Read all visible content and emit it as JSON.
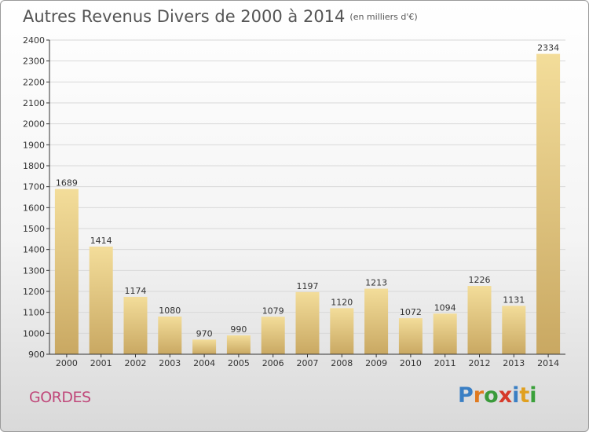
{
  "title": "Autres Revenus Divers de 2000 à 2014",
  "subtitle": "(en milliers d'€)",
  "town": "GORDES",
  "logo": {
    "text": "Proxiti",
    "letters": [
      {
        "ch": "P",
        "color": "#3a7fc4"
      },
      {
        "ch": "r",
        "color": "#e07a1f"
      },
      {
        "ch": "o",
        "color": "#3a9a3a"
      },
      {
        "ch": "x",
        "color": "#d63a2a"
      },
      {
        "ch": "i",
        "color": "#3a7fc4"
      },
      {
        "ch": "t",
        "color": "#e0a020"
      },
      {
        "ch": "i",
        "color": "#3aa03a"
      }
    ]
  },
  "colors": {
    "bar_light": "#f3dd9a",
    "bar_dark": "#c9a862",
    "axis": "#333333",
    "grid": "#d8d8d8"
  },
  "chart_data": {
    "type": "bar",
    "categories": [
      "2000",
      "2001",
      "2002",
      "2003",
      "2004",
      "2005",
      "2006",
      "2007",
      "2008",
      "2009",
      "2010",
      "2011",
      "2012",
      "2013",
      "2014"
    ],
    "values": [
      1689,
      1414,
      1174,
      1080,
      970,
      990,
      1079,
      1197,
      1120,
      1213,
      1072,
      1094,
      1226,
      1131,
      2334
    ],
    "ylim": [
      900,
      2400
    ],
    "yticks": [
      900,
      1000,
      1100,
      1200,
      1300,
      1400,
      1500,
      1600,
      1700,
      1800,
      1900,
      2000,
      2100,
      2200,
      2300,
      2400
    ],
    "grid": true,
    "data_labels": true
  }
}
